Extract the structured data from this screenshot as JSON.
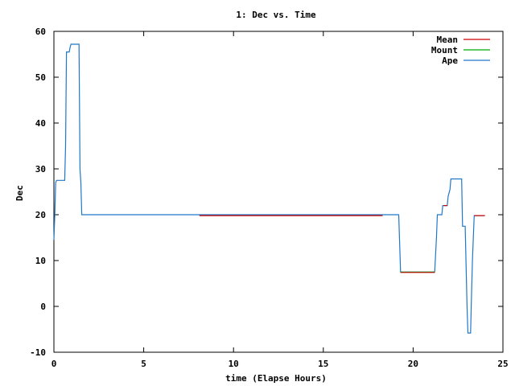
{
  "chart_data": {
    "type": "line",
    "title": "1: Dec vs. Time",
    "xlabel": "time (Elapse Hours)",
    "ylabel": "Dec",
    "xlim": [
      0,
      25
    ],
    "ylim": [
      -10,
      60
    ],
    "x_ticks": [
      0,
      5,
      10,
      15,
      20,
      25
    ],
    "y_ticks": [
      -10,
      0,
      10,
      20,
      30,
      40,
      50,
      60
    ],
    "grid": false,
    "legend_position": "top-right",
    "series": [
      {
        "name": "Mean",
        "color": "#cc0000",
        "segments": [
          [
            [
              8.1,
              19.8
            ],
            [
              18.3,
              19.8
            ]
          ],
          [
            [
              19.3,
              7.4
            ],
            [
              21.2,
              7.4
            ]
          ],
          [
            [
              21.7,
              22.0
            ],
            [
              21.9,
              22.0
            ]
          ],
          [
            [
              23.4,
              19.8
            ],
            [
              24.0,
              19.8
            ]
          ]
        ]
      },
      {
        "name": "Mount",
        "color": "#00aa00",
        "segments": [
          [
            [
              19.3,
              7.5
            ],
            [
              21.2,
              7.5
            ]
          ]
        ]
      },
      {
        "name": "Ape",
        "color": "#1f78c8",
        "segments": [
          [
            [
              0.0,
              14.5
            ],
            [
              0.05,
              20.0
            ],
            [
              0.1,
              27.0
            ],
            [
              0.15,
              27.5
            ],
            [
              0.6,
              27.5
            ],
            [
              0.65,
              35.0
            ],
            [
              0.7,
              55.5
            ],
            [
              0.85,
              55.5
            ],
            [
              0.9,
              56.5
            ],
            [
              0.95,
              57.2
            ],
            [
              1.4,
              57.2
            ],
            [
              1.45,
              30.0
            ],
            [
              1.5,
              27.0
            ],
            [
              1.55,
              20.0
            ],
            [
              8.1,
              20.0
            ],
            [
              19.2,
              20.0
            ],
            [
              19.3,
              7.5
            ],
            [
              21.2,
              7.5
            ],
            [
              21.3,
              15.0
            ],
            [
              21.35,
              20.0
            ],
            [
              21.6,
              20.0
            ],
            [
              21.65,
              22.0
            ],
            [
              21.9,
              22.0
            ],
            [
              21.95,
              24.0
            ],
            [
              22.05,
              25.5
            ],
            [
              22.1,
              27.8
            ],
            [
              22.7,
              27.8
            ],
            [
              22.75,
              17.5
            ],
            [
              22.9,
              17.5
            ],
            [
              22.95,
              9.0
            ],
            [
              23.0,
              0.0
            ],
            [
              23.05,
              -5.8
            ],
            [
              23.2,
              -5.8
            ],
            [
              23.25,
              2.0
            ],
            [
              23.3,
              10.0
            ],
            [
              23.35,
              15.0
            ],
            [
              23.4,
              19.8
            ],
            [
              23.95,
              19.8
            ]
          ]
        ]
      }
    ]
  }
}
